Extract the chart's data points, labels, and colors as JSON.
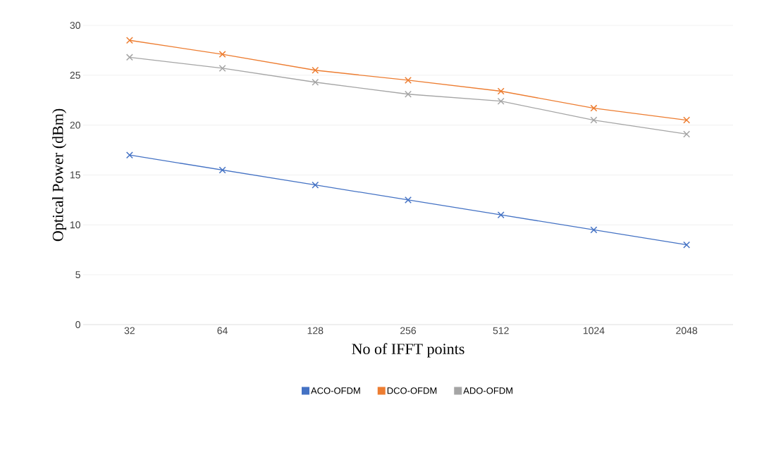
{
  "chart_data": {
    "type": "line",
    "xlabel": "No of IFFT points",
    "ylabel": "Optical Power (dBm)",
    "categories": [
      "32",
      "64",
      "128",
      "256",
      "512",
      "1024",
      "2048"
    ],
    "series": [
      {
        "name": "ACO-OFDM",
        "color": "#4472c4",
        "values": [
          17.0,
          15.5,
          14.0,
          12.5,
          11.0,
          9.5,
          8.0
        ]
      },
      {
        "name": "DCO-OFDM",
        "color": "#ed7d31",
        "values": [
          28.5,
          27.1,
          25.5,
          24.5,
          23.4,
          21.7,
          20.5
        ]
      },
      {
        "name": "ADO-OFDM",
        "color": "#a5a5a5",
        "values": [
          26.8,
          25.7,
          24.3,
          23.1,
          22.4,
          20.5,
          19.1
        ]
      }
    ],
    "ylim": [
      0,
      30
    ],
    "yticks": [
      0,
      5,
      10,
      15,
      20,
      25,
      30
    ],
    "grid": "y",
    "legend": "bottom",
    "marker": "cross",
    "line_style": "solid"
  }
}
